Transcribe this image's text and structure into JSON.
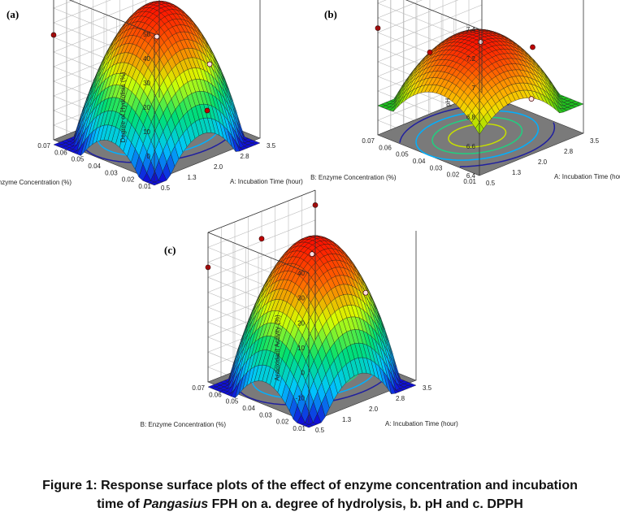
{
  "caption": {
    "line1": "Figure 1: Response surface plots of the effect of enzyme concentration and incubation",
    "line2_pre": "time of ",
    "line2_italic": "Pangasius",
    "line2_post": " FPH on a. degree of hydrolysis, b. pH and c. DPPH"
  },
  "chart_data": [
    {
      "type": "surface3d",
      "panel": "(a)",
      "zlabel": "Degree of Hydrolisis (%)",
      "xlabel": "A: Incubation Time (hour)",
      "ylabel": "B: Enzyme Concentration (%)",
      "x_ticks": [
        "0.5",
        "1.3",
        "2.0",
        "2.8",
        "3.5"
      ],
      "y_ticks": [
        "0.01",
        "0.02",
        "0.03",
        "0.04",
        "0.05",
        "0.06",
        "0.07"
      ],
      "z_ticks": [
        "0",
        "10",
        "20",
        "30",
        "40",
        "50"
      ],
      "xlim": [
        0.5,
        3.5
      ],
      "ylim": [
        0.01,
        0.07
      ],
      "zlim": [
        -10,
        50
      ],
      "surface": {
        "peak_x": 2.3,
        "peak_y": 0.045,
        "peak_z": 42,
        "min_z": -12
      },
      "points": [
        {
          "x": 0.5,
          "y": 0.07,
          "z": 33
        },
        {
          "x": 2.0,
          "y": 0.04,
          "z": 32
        },
        {
          "x": 3.5,
          "y": 0.07,
          "z": 44
        },
        {
          "x": 2.0,
          "y": 0.01,
          "z": 10
        },
        {
          "x": 3.5,
          "y": 0.04,
          "z": 12
        }
      ],
      "colormap": [
        "#1010d8",
        "#00c8ff",
        "#00e070",
        "#d8ff00",
        "#ff7000",
        "#ff1000"
      ],
      "floor_color": "#7a7a7a",
      "contour_colors": [
        "#2020a0",
        "#00b0ff",
        "#20d080",
        "#c8e000"
      ]
    },
    {
      "type": "surface3d",
      "panel": "(b)",
      "zlabel": "pH",
      "xlabel": "A: Incubation Time (hour)",
      "ylabel": "B: Enzyme Concentration (%)",
      "x_ticks": [
        "0.5",
        "1.3",
        "2.0",
        "2.8",
        "3.5"
      ],
      "y_ticks": [
        "0.01",
        "0.02",
        "0.03",
        "0.04",
        "0.05",
        "0.06",
        "0.07"
      ],
      "z_ticks": [
        "6.4",
        "6.6",
        "6.8",
        "7",
        "7.2",
        "7.4"
      ],
      "xlim": [
        0.5,
        3.5
      ],
      "ylim": [
        0.01,
        0.07
      ],
      "zlim": [
        6.4,
        7.4
      ],
      "surface": {
        "peak_x": 1.9,
        "peak_y": 0.04,
        "peak_z": 7.08,
        "min_z": 6.6
      },
      "points": [
        {
          "x": 0.5,
          "y": 0.07,
          "z": 7.13
        },
        {
          "x": 2.0,
          "y": 0.07,
          "z": 6.82
        },
        {
          "x": 2.0,
          "y": 0.04,
          "z": 7.03
        },
        {
          "x": 3.5,
          "y": 0.07,
          "z": 7.17
        },
        {
          "x": 2.0,
          "y": 0.01,
          "z": 6.78
        },
        {
          "x": 3.5,
          "y": 0.04,
          "z": 6.85
        }
      ],
      "colormap": [
        "#20c020",
        "#90e000",
        "#f0e000",
        "#ffa000",
        "#ff5000",
        "#ff1000"
      ],
      "floor_color": "#7a7a7a",
      "contour_colors": [
        "#2020a0",
        "#00b0ff",
        "#20d080",
        "#c8e000"
      ]
    },
    {
      "type": "surface3d",
      "panel": "(c)",
      "zlabel": "Antioxidant Activity (%)",
      "xlabel": "A: Incubation Time (hour)",
      "ylabel": "B: Enzyme Concentration (%)",
      "x_ticks": [
        "0.5",
        "1.3",
        "2.0",
        "2.8",
        "3.5"
      ],
      "y_ticks": [
        "0.01",
        "0.02",
        "0.03",
        "0.04",
        "0.05",
        "0.06",
        "0.07"
      ],
      "z_ticks": [
        "-10",
        "0",
        "10",
        "20",
        "30",
        "40"
      ],
      "xlim": [
        0.5,
        3.5
      ],
      "ylim": [
        0.01,
        0.07
      ],
      "zlim": [
        -20,
        40
      ],
      "surface": {
        "peak_x": 2.3,
        "peak_y": 0.045,
        "peak_z": 34,
        "min_z": -22
      },
      "points": [
        {
          "x": 0.5,
          "y": 0.07,
          "z": 26
        },
        {
          "x": 2.0,
          "y": 0.04,
          "z": 31
        },
        {
          "x": 2.0,
          "y": 0.07,
          "z": 29
        },
        {
          "x": 3.5,
          "y": 0.07,
          "z": 34
        },
        {
          "x": 3.5,
          "y": 0.04,
          "z": 7
        }
      ],
      "colormap": [
        "#1010d8",
        "#00c8ff",
        "#00e070",
        "#d8ff00",
        "#ff7000",
        "#ff1000"
      ],
      "floor_color": "#7a7a7a",
      "contour_colors": [
        "#2020a0",
        "#00b0ff",
        "#20d080",
        "#c8e000"
      ]
    }
  ]
}
